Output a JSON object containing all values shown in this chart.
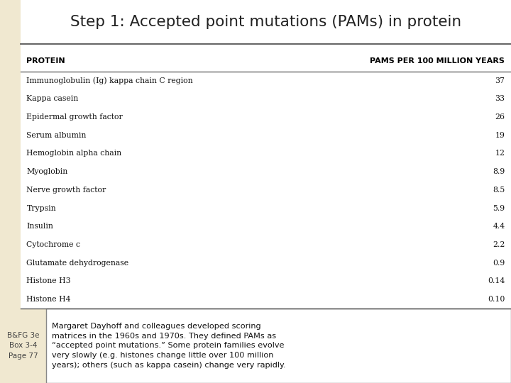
{
  "title": "Step 1: Accepted point mutations (PAMs) in protein",
  "col1_header": "PROTEIN",
  "col2_header": "PAMS PER 100 MILLION YEARS",
  "rows": [
    [
      "Immunoglobulin (Ig) kappa chain C region",
      "37"
    ],
    [
      "Kappa casein",
      "33"
    ],
    [
      "Epidermal growth factor",
      "26"
    ],
    [
      "Serum albumin",
      "19"
    ],
    [
      "Hemoglobin alpha chain",
      "12"
    ],
    [
      "Myoglobin",
      "8.9"
    ],
    [
      "Nerve growth factor",
      "8.5"
    ],
    [
      "Trypsin",
      "5.9"
    ],
    [
      "Insulin",
      "4.4"
    ],
    [
      "Cytochrome c",
      "2.2"
    ],
    [
      "Glutamate dehydrogenase",
      "0.9"
    ],
    [
      "Histone H3",
      "0.14"
    ],
    [
      "Histone H4",
      "0.10"
    ]
  ],
  "caption_left": "B&FG 3e\nBox 3-4\nPage 77",
  "caption_text": "Margaret Dayhoff and colleagues developed scoring\nmatrices in the 1960s and 1970s. They defined PAMs as\n“accepted point mutations.” Some protein families evolve\nvery slowly (e.g. histones change little over 100 million\nyears); others (such as kappa casein) change very rapidly.",
  "bg_color": "#f0e8d0",
  "table_bg": "#ffffff",
  "title_bg": "#ffffff",
  "caption_box_bg": "#ffffff"
}
